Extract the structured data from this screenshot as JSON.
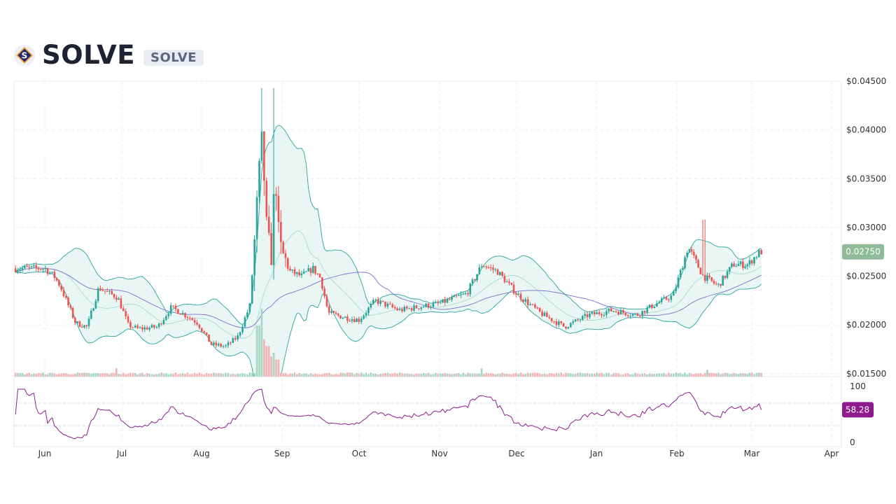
{
  "header": {
    "title": "SOLVE",
    "ticker": "SOLVE",
    "logo_icon": "solve-coin-logo-icon"
  },
  "colors": {
    "up": "#26a69a",
    "down": "#ef5350",
    "bb_band": "#26a69a",
    "bb_fill": "#e6f4f2",
    "ma_line": "#7b6fd0",
    "rsi_line": "#8e1b8e",
    "price_badge": "#8fbb98",
    "rsi_badge": "#8e1b8e"
  },
  "chart_data": {
    "type": "candlestick",
    "price_axis": {
      "ticks": [
        "$0.04500",
        "$0.04000",
        "$0.03500",
        "$0.03000",
        "$0.02500",
        "$0.02000",
        "$0.01500"
      ],
      "tick_values": [
        0.045,
        0.04,
        0.035,
        0.03,
        0.025,
        0.02,
        0.015
      ],
      "range": [
        0.0147,
        0.045
      ]
    },
    "x_axis": {
      "labels": [
        "Jun",
        "Jul",
        "Aug",
        "Sep",
        "Oct",
        "Nov",
        "Dec",
        "Jan",
        "Feb",
        "Mar",
        "Apr"
      ]
    },
    "last_price": "0.02750",
    "rsi": {
      "ticks": [
        "100",
        "0"
      ],
      "last_value": "58.28",
      "levels": [
        70,
        30
      ]
    },
    "price_anchors": [
      {
        "m": 0.0,
        "p": 0.0258
      },
      {
        "m": 0.12,
        "p": 0.025
      },
      {
        "m": 0.2,
        "p": 0.024
      },
      {
        "m": 0.4,
        "p": 0.0202
      },
      {
        "m": 0.55,
        "p": 0.0198
      },
      {
        "m": 0.7,
        "p": 0.0238
      },
      {
        "m": 0.95,
        "p": 0.0228
      },
      {
        "m": 1.08,
        "p": 0.02
      },
      {
        "m": 1.2,
        "p": 0.0196
      },
      {
        "m": 1.45,
        "p": 0.0198
      },
      {
        "m": 1.62,
        "p": 0.0218
      },
      {
        "m": 1.8,
        "p": 0.021
      },
      {
        "m": 1.95,
        "p": 0.0202
      },
      {
        "m": 2.12,
        "p": 0.018
      },
      {
        "m": 2.3,
        "p": 0.0178
      },
      {
        "m": 2.45,
        "p": 0.0188
      },
      {
        "m": 2.6,
        "p": 0.022
      },
      {
        "m": 2.72,
        "p": 0.0355
      },
      {
        "m": 2.76,
        "p": 0.039
      },
      {
        "m": 2.8,
        "p": 0.03
      },
      {
        "m": 2.86,
        "p": 0.0265
      },
      {
        "m": 2.92,
        "p": 0.036
      },
      {
        "m": 2.96,
        "p": 0.028
      },
      {
        "m": 3.1,
        "p": 0.0255
      },
      {
        "m": 3.25,
        "p": 0.025
      },
      {
        "m": 3.4,
        "p": 0.0258
      },
      {
        "m": 3.5,
        "p": 0.0248
      },
      {
        "m": 3.6,
        "p": 0.0212
      },
      {
        "m": 3.8,
        "p": 0.0208
      },
      {
        "m": 4.0,
        "p": 0.0205
      },
      {
        "m": 4.2,
        "p": 0.0225
      },
      {
        "m": 4.5,
        "p": 0.0215
      },
      {
        "m": 5.0,
        "p": 0.0222
      },
      {
        "m": 5.35,
        "p": 0.0232
      },
      {
        "m": 5.55,
        "p": 0.0262
      },
      {
        "m": 5.75,
        "p": 0.0255
      },
      {
        "m": 6.0,
        "p": 0.0232
      },
      {
        "m": 6.3,
        "p": 0.0212
      },
      {
        "m": 6.6,
        "p": 0.0198
      },
      {
        "m": 6.9,
        "p": 0.021
      },
      {
        "m": 7.2,
        "p": 0.0215
      },
      {
        "m": 7.5,
        "p": 0.021
      },
      {
        "m": 7.7,
        "p": 0.022
      },
      {
        "m": 7.95,
        "p": 0.023
      },
      {
        "m": 8.15,
        "p": 0.028
      },
      {
        "m": 8.35,
        "p": 0.025
      },
      {
        "m": 8.55,
        "p": 0.024
      },
      {
        "m": 8.75,
        "p": 0.0262
      },
      {
        "m": 8.95,
        "p": 0.0262
      },
      {
        "m": 9.1,
        "p": 0.0275
      }
    ],
    "volume_spikes": [
      {
        "m": 2.7,
        "v": 0.75
      },
      {
        "m": 2.74,
        "v": 1.0
      },
      {
        "m": 2.78,
        "v": 0.55
      },
      {
        "m": 2.82,
        "v": 0.45
      },
      {
        "m": 2.86,
        "v": 0.3
      },
      {
        "m": 2.9,
        "v": 0.35
      },
      {
        "m": 2.94,
        "v": 0.25
      },
      {
        "m": 0.93,
        "v": 0.12
      },
      {
        "m": 5.55,
        "v": 0.12
      },
      {
        "m": 8.4,
        "v": 0.1
      }
    ],
    "volume_max_height_ratio": 0.23
  }
}
